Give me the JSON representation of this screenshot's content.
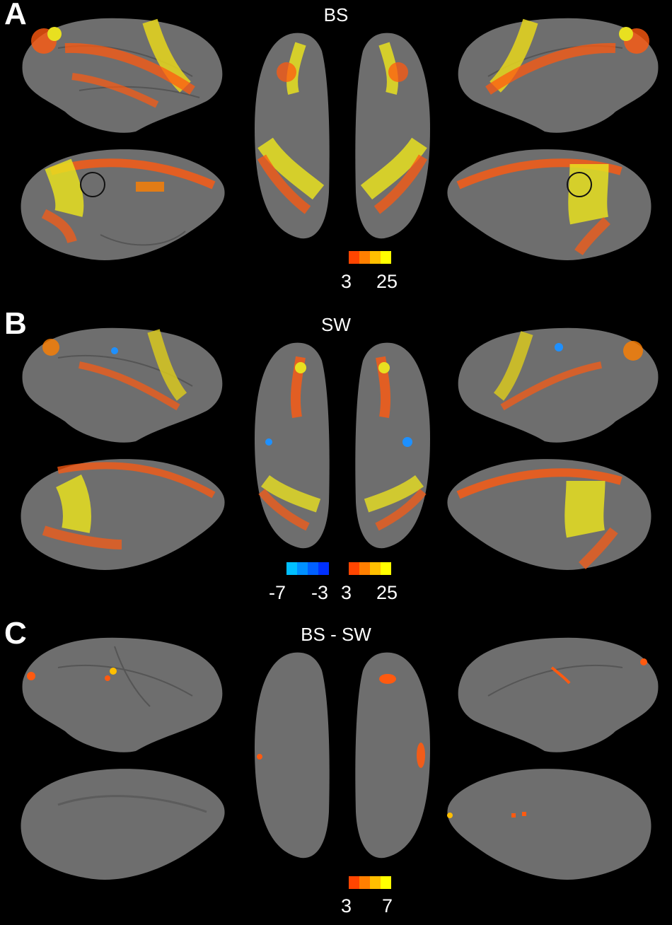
{
  "panels": [
    {
      "letter": "A",
      "title": "BS",
      "colorbars": [
        {
          "kind": "positive",
          "min_label": "3",
          "max_label": "25",
          "colors": [
            "#ff4500",
            "#ff7f00",
            "#ffbf00",
            "#ffff00"
          ]
        }
      ]
    },
    {
      "letter": "B",
      "title": "SW",
      "colorbars": [
        {
          "kind": "negative",
          "min_label": "-7",
          "max_label": "-3",
          "colors": [
            "#00bfff",
            "#0090ff",
            "#0060ff",
            "#0030ff"
          ]
        },
        {
          "kind": "positive",
          "min_label": "3",
          "max_label": "25",
          "colors": [
            "#ff4500",
            "#ff7f00",
            "#ffbf00",
            "#ffff00"
          ]
        }
      ]
    },
    {
      "letter": "C",
      "title": "BS - SW",
      "colorbars": [
        {
          "kind": "positive",
          "min_label": "3",
          "max_label": "7",
          "colors": [
            "#ff4500",
            "#ff7f00",
            "#ffbf00",
            "#ffff00"
          ]
        }
      ]
    }
  ],
  "colors": {
    "background": "#000000",
    "cortex": "#6e6e6e",
    "activation_low": "#ff5a10",
    "activation_high": "#ffff20",
    "deactivation": "#1e90ff"
  }
}
